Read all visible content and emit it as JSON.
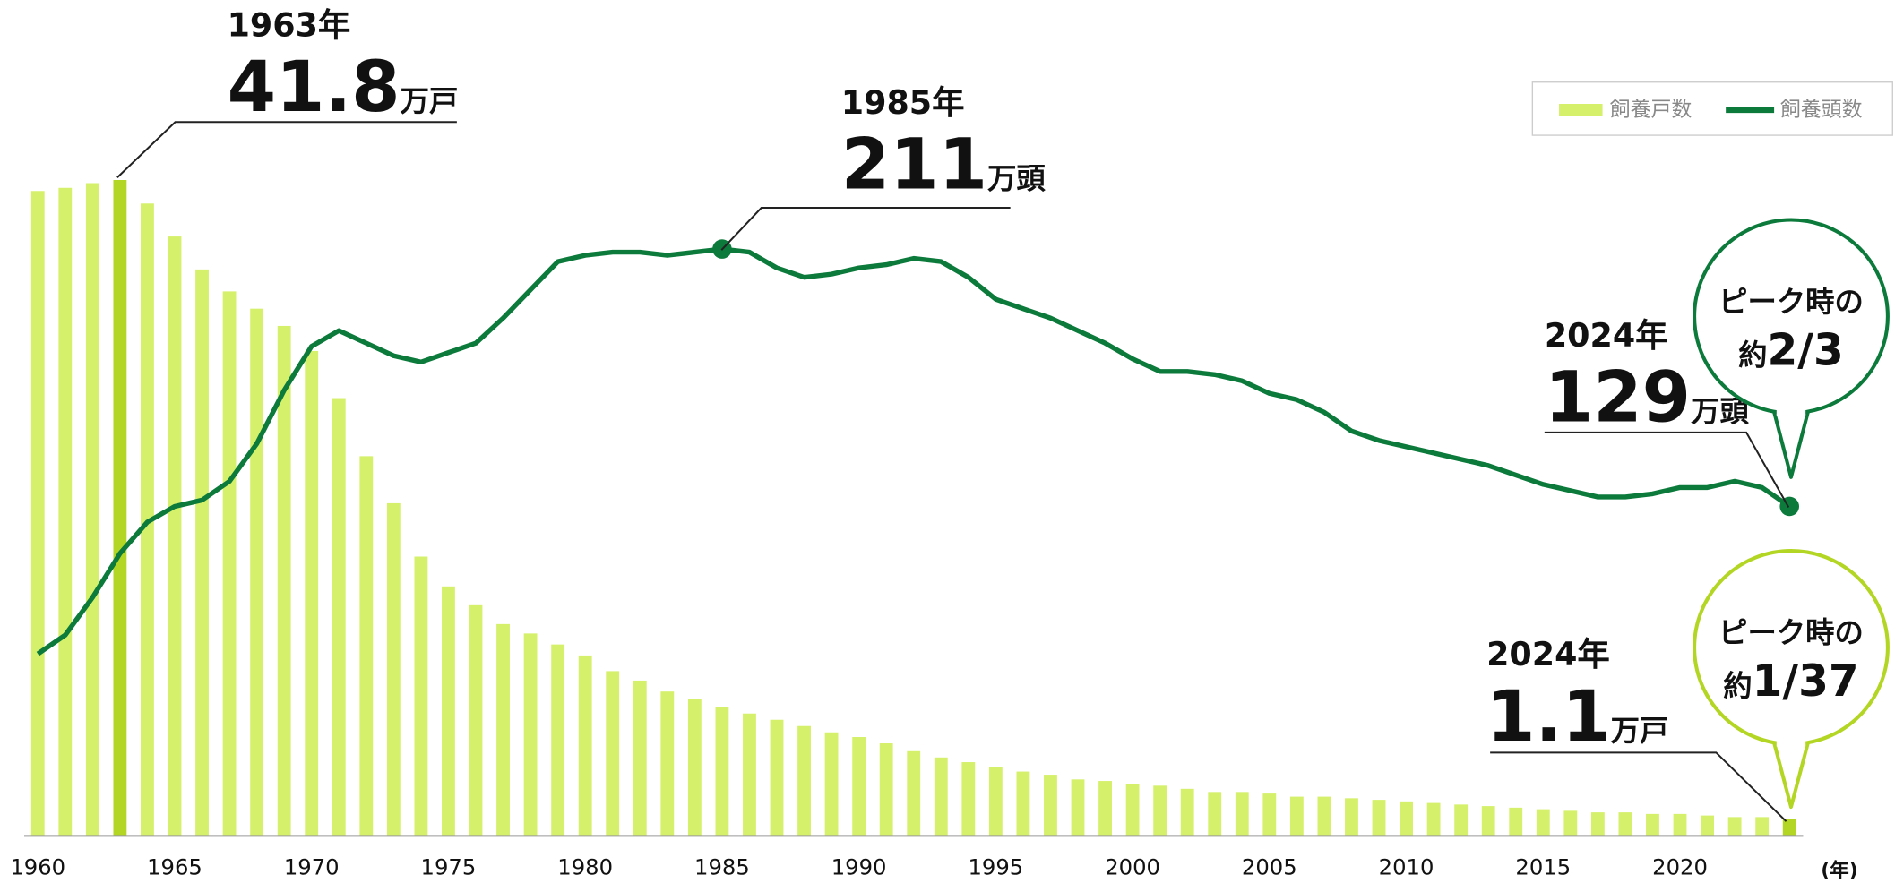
{
  "chart_data": {
    "type": "bar_line",
    "x": [
      1960,
      1961,
      1962,
      1963,
      1964,
      1965,
      1966,
      1967,
      1968,
      1969,
      1970,
      1971,
      1972,
      1973,
      1974,
      1975,
      1976,
      1977,
      1978,
      1979,
      1980,
      1981,
      1982,
      1983,
      1984,
      1985,
      1986,
      1987,
      1988,
      1989,
      1990,
      1991,
      1992,
      1993,
      1994,
      1995,
      1996,
      1997,
      1998,
      1999,
      2000,
      2001,
      2002,
      2003,
      2004,
      2005,
      2006,
      2007,
      2008,
      2009,
      2010,
      2011,
      2012,
      2013,
      2014,
      2015,
      2016,
      2017,
      2018,
      2019,
      2020,
      2021,
      2022,
      2023,
      2024
    ],
    "xlim": [
      1959.5,
      2024.5
    ],
    "xticks": [
      1960,
      1965,
      1970,
      1975,
      1980,
      1985,
      1990,
      1995,
      2000,
      2005,
      2010,
      2015,
      2020
    ],
    "xlabel": "(年)",
    "ylim": [
      0,
      50
    ],
    "y2lim": [
      24,
      274
    ],
    "series": [
      {
        "name": "飼養戸数",
        "type": "bar",
        "color": "#d5f06b",
        "highlight_color": "#b3d624",
        "values": [
          41.1,
          41.3,
          41.6,
          41.8,
          40.3,
          38.2,
          36.1,
          34.7,
          33.6,
          32.5,
          30.9,
          27.9,
          24.2,
          21.2,
          17.8,
          15.9,
          14.7,
          13.5,
          12.9,
          12.2,
          11.5,
          10.5,
          9.9,
          9.2,
          8.7,
          8.2,
          7.8,
          7.4,
          7.0,
          6.6,
          6.3,
          5.9,
          5.4,
          5.0,
          4.7,
          4.4,
          4.1,
          3.9,
          3.6,
          3.5,
          3.3,
          3.2,
          3.0,
          2.8,
          2.8,
          2.7,
          2.5,
          2.5,
          2.4,
          2.3,
          2.2,
          2.1,
          2.0,
          1.9,
          1.8,
          1.7,
          1.6,
          1.5,
          1.5,
          1.4,
          1.4,
          1.3,
          1.2,
          1.2,
          1.1
        ]
      },
      {
        "name": "飼養頭数",
        "type": "line",
        "axis": "y2",
        "color": "#0b7a3b",
        "values": [
          82,
          88,
          100,
          114,
          124,
          129,
          131,
          137,
          149,
          166,
          180,
          185,
          181,
          177,
          175,
          178,
          181,
          189,
          198,
          207,
          209,
          210,
          210,
          209,
          210,
          211,
          210,
          205,
          202,
          203,
          205,
          206,
          208,
          207,
          202,
          195,
          192,
          189,
          185,
          181,
          176,
          172,
          172,
          171,
          169,
          165,
          163,
          159,
          153,
          150,
          148,
          146,
          144,
          142,
          139,
          136,
          134,
          132,
          132,
          133,
          135,
          135,
          137,
          135,
          129
        ]
      }
    ],
    "annotations": [
      {
        "label": "1963年",
        "unit": "万戸"
      },
      {
        "label": "1985年",
        "unit": "万頭"
      },
      {
        "label": "2024年",
        "unit": "万頭"
      },
      {
        "label": "2024年",
        "unit": "万戸"
      }
    ],
    "callouts": [
      {
        "line1": "ピーク時の",
        "prefix": "約",
        "ratio": "2/3"
      },
      {
        "line1": "ピーク時の",
        "prefix": "約",
        "ratio": "1/37"
      }
    ]
  }
}
